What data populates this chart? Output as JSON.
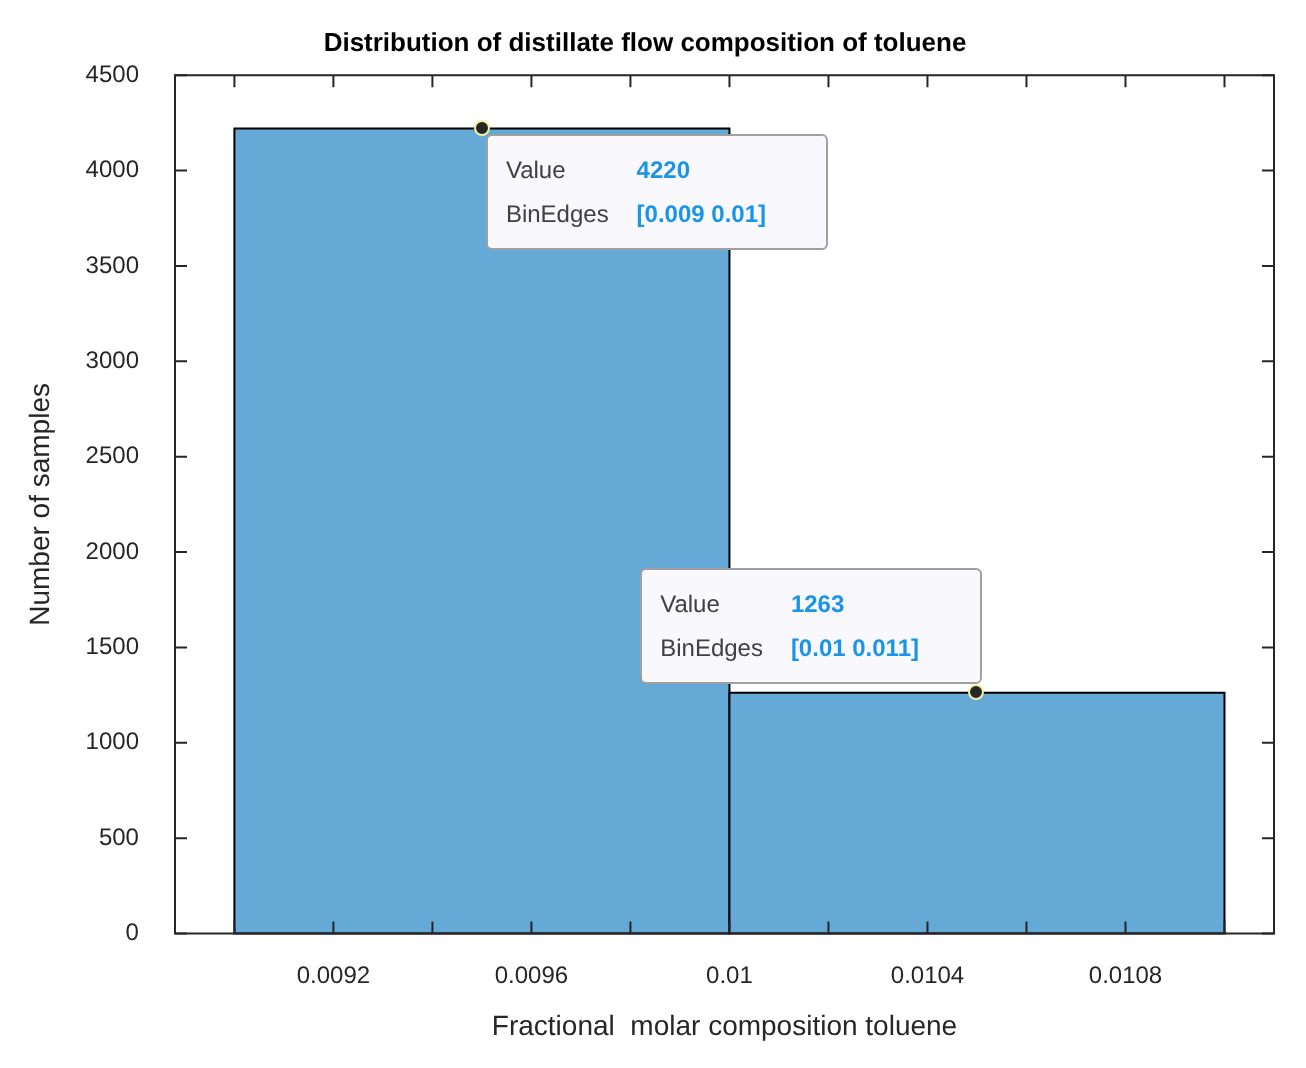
{
  "chart_data": {
    "type": "histogram",
    "title": "Distribution of distillate flow composition of toluene",
    "xlabel": "Fractional  molar composition toluene",
    "ylabel": "Number of samples",
    "bins": [
      0.009,
      0.01,
      0.011
    ],
    "values": [
      4220,
      1263
    ],
    "color": "#65a9d7",
    "xlim": [
      0.00888,
      0.0111
    ],
    "xticks": [
      {
        "value": 0.009,
        "label": null
      },
      0.0092,
      {
        "value": 0.0094,
        "label": null
      },
      0.0096,
      {
        "value": 0.0098,
        "label": null
      },
      0.01,
      {
        "value": 0.0102,
        "label": null
      },
      0.0104,
      {
        "value": 0.0106,
        "label": null
      },
      0.0108,
      {
        "value": 0.011,
        "label": null
      }
    ],
    "ylim": [
      0,
      4500
    ],
    "yticks": [
      0,
      500,
      1000,
      1500,
      2000,
      2500,
      3000,
      3500,
      4000,
      4500
    ],
    "grid": false,
    "annotations": [
      "Value 4220",
      "BinEdges [0.009 0.01]",
      "Value 1263",
      "BinEdges [0.01 0.011]"
    ]
  }
}
